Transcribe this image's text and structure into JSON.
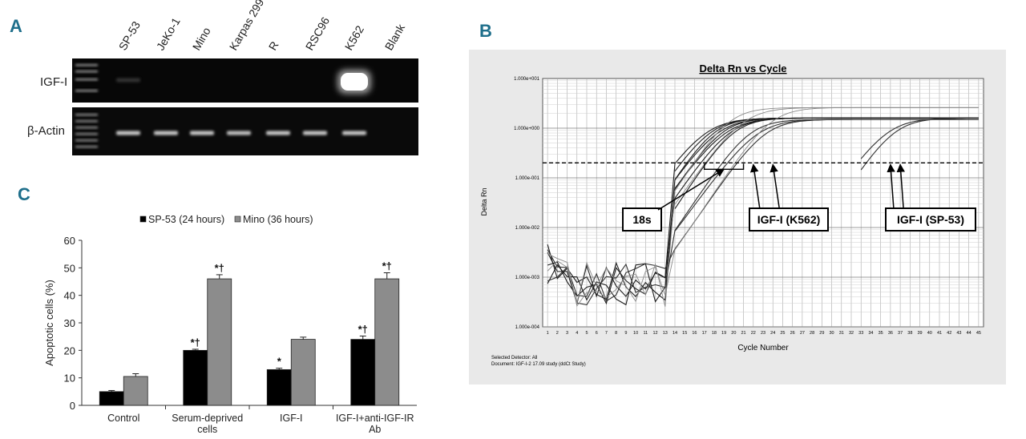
{
  "panels": {
    "a": {
      "letter": "A"
    },
    "b": {
      "letter": "B"
    },
    "c": {
      "letter": "C"
    }
  },
  "gel": {
    "lanes": [
      "SP-53",
      "JeKo-1",
      "Mino",
      "Karpas 299",
      "R",
      "RSC96",
      "K562",
      "Blank"
    ],
    "rows": [
      {
        "label": "IGF-I",
        "band_intensity": [
          0.15,
          0,
          0,
          0,
          0,
          0,
          1.0,
          0
        ]
      },
      {
        "label": "β-Actin",
        "band_intensity": [
          0.85,
          0.85,
          0.85,
          0.8,
          0.85,
          0.85,
          0.85,
          0
        ]
      }
    ]
  },
  "chart_data": [
    {
      "panel": "C",
      "type": "bar",
      "title": "",
      "xlabel": "",
      "ylabel": "Apoptotic cells (%)",
      "ylim": [
        0,
        60
      ],
      "yticks": [
        0,
        10,
        20,
        30,
        40,
        50,
        60
      ],
      "categories": [
        "Control",
        "Serum-deprived cells",
        "IGF-I",
        "IGF-I+anti-IGF-IR Ab"
      ],
      "category_lines": [
        [
          "Control"
        ],
        [
          "Serum-deprived",
          "cells"
        ],
        [
          "IGF-I"
        ],
        [
          "IGF-I+anti-IGF-IR",
          "Ab"
        ]
      ],
      "legend_position": "top",
      "series": [
        {
          "name": "SP-53 (24 hours)",
          "color": "#000000",
          "values": [
            5,
            20,
            13,
            24
          ],
          "errors": [
            0.4,
            0.4,
            0.5,
            1.2
          ],
          "annotations": [
            "",
            "*†",
            "*",
            "*†"
          ]
        },
        {
          "name": "Mino (36 hours)",
          "color": "#8c8c8c",
          "values": [
            10.5,
            46,
            24,
            46
          ],
          "errors": [
            1.0,
            1.5,
            0.8,
            2.2
          ],
          "annotations": [
            "",
            "*†",
            "",
            "*†"
          ]
        }
      ]
    },
    {
      "panel": "B",
      "type": "line",
      "title": "Delta Rn vs Cycle",
      "xlabel": "Cycle Number",
      "ylabel": "Delta Rn",
      "y_scale": "log",
      "ylim": [
        0.0001,
        10
      ],
      "yticks": [
        "1.000e-004",
        "1.000e-003",
        "1.000e-002",
        "1.000e-001",
        "1.000e+000",
        "1.000e+001"
      ],
      "x_ticks": [
        1,
        2,
        3,
        4,
        5,
        6,
        7,
        8,
        9,
        10,
        11,
        12,
        13,
        14,
        15,
        16,
        17,
        18,
        19,
        20,
        21,
        22,
        23,
        24,
        25,
        26,
        27,
        28,
        29,
        30,
        31,
        32,
        33,
        34,
        35,
        36,
        37,
        38,
        39,
        40,
        41,
        42,
        43,
        44,
        45
      ],
      "threshold": 0.2,
      "callouts": [
        {
          "label": "18s",
          "cycles": [
            18,
            19
          ]
        },
        {
          "label": "IGF-I (K562)",
          "cycles": [
            22,
            24
          ]
        },
        {
          "label": "IGF-I (SP-53)",
          "cycles": [
            36,
            37
          ]
        }
      ],
      "curve_groups": [
        {
          "name": "18s",
          "ct": [
            17.2,
            17.6,
            18.0,
            18.4,
            18.8,
            19.2,
            19.6,
            20.0
          ],
          "plateau": 1.6
        },
        {
          "name": "IGF-I (K562)",
          "ct": [
            21.6,
            22.4,
            23.2
          ],
          "plateau": 1.5
        },
        {
          "name": "IGF-I (SP-53)",
          "ct": [
            35.7,
            36.4
          ],
          "plateau": 1.6
        },
        {
          "name": "other",
          "ct": [
            19.5,
            21.0,
            23.8
          ],
          "plateau": 2.6
        }
      ],
      "footer": [
        "Selected Detector: All",
        "Document: IGF-I-2 17.09 study (ddCt Study)"
      ]
    }
  ]
}
